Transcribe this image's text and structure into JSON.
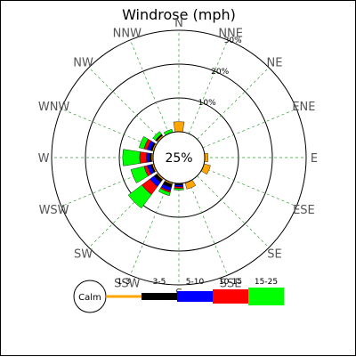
{
  "title": "Windrose (mph)",
  "center_label": "25%",
  "calm_label": "Calm",
  "chart_data": {
    "type": "windrose",
    "title": "Windrose (mph)",
    "unit": "mph",
    "directions": [
      "N",
      "NNE",
      "NE",
      "ENE",
      "E",
      "ESE",
      "SE",
      "SSE",
      "S",
      "SSW",
      "SW",
      "WSW",
      "W",
      "WNW",
      "NW",
      "NNW"
    ],
    "ring_labels": [
      "10%",
      "20%",
      "30%"
    ],
    "ring_values": [
      10,
      20,
      30
    ],
    "calm_percent": 25,
    "grid": true,
    "legend_position": "bottom",
    "speed_bins": [
      {
        "name": "1-3",
        "color": "#ffa500"
      },
      {
        "name": "3-5",
        "color": "#000000"
      },
      {
        "name": "5-10",
        "color": "#0000ff"
      },
      {
        "name": "10-15",
        "color": "#ff0000"
      },
      {
        "name": "15-25",
        "color": "#00ff00"
      }
    ],
    "frequencies": {
      "N": [
        3,
        0,
        0,
        0,
        0
      ],
      "NNE": [
        0,
        0,
        0,
        0,
        0
      ],
      "NE": [
        0,
        0,
        0,
        0,
        0
      ],
      "ENE": [
        0,
        0,
        0,
        0,
        0
      ],
      "E": [
        1,
        0,
        0,
        0,
        0
      ],
      "ESE": [
        2,
        0,
        0,
        0,
        0
      ],
      "SE": [
        0,
        0,
        0,
        0,
        0
      ],
      "SSE": [
        2,
        0,
        0,
        0,
        0
      ],
      "S": [
        0,
        0.5,
        0.5,
        0.5,
        0.5
      ],
      "SSW": [
        0.5,
        1,
        1,
        0.5,
        1
      ],
      "SW": [
        0.5,
        1,
        1.5,
        3,
        5
      ],
      "WSW": [
        0.5,
        0.5,
        1,
        1,
        4
      ],
      "W": [
        0.5,
        0.5,
        1,
        2,
        5
      ],
      "WNW": [
        0.5,
        0.5,
        1,
        1,
        1.5
      ],
      "NW": [
        0.5,
        0.5,
        0,
        0,
        1
      ],
      "NNW": [
        0,
        0,
        0,
        0,
        1
      ]
    }
  }
}
